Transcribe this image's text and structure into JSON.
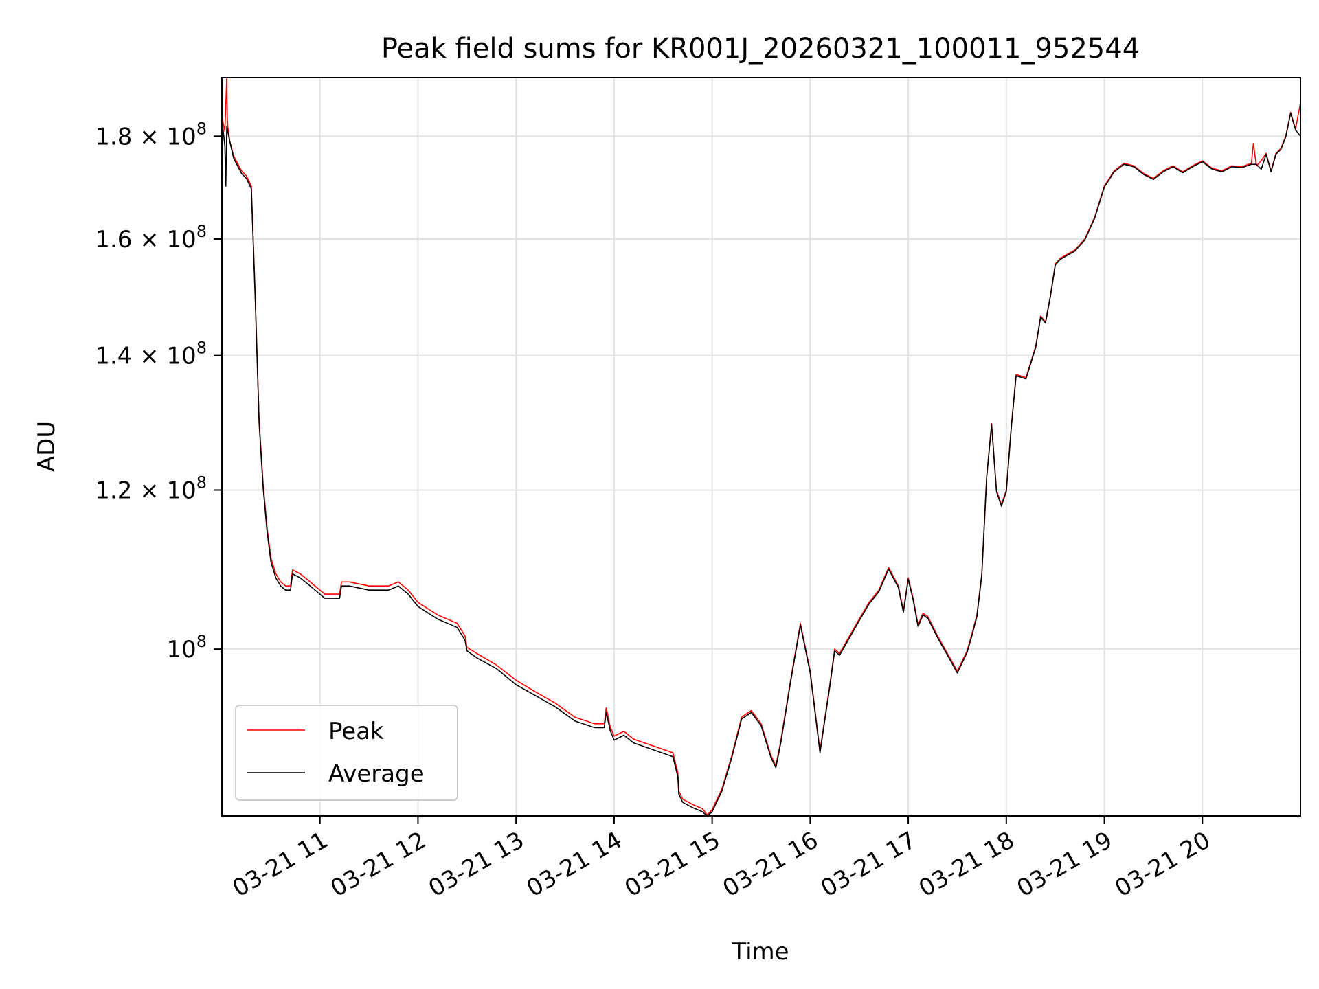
{
  "chart_data": {
    "type": "line",
    "title": "Peak field sums for KR001J_20260321_100011_952544",
    "xlabel": "Time",
    "ylabel": "ADU",
    "yscale": "log",
    "ylim": [
      82600000,
      192500000
    ],
    "xlim_hours": [
      10.0,
      21.0
    ],
    "grid": true,
    "legend_location": "lower-left",
    "x_ticks": [
      {
        "hour": 11,
        "label": "03-21 11"
      },
      {
        "hour": 12,
        "label": "03-21 12"
      },
      {
        "hour": 13,
        "label": "03-21 13"
      },
      {
        "hour": 14,
        "label": "03-21 14"
      },
      {
        "hour": 15,
        "label": "03-21 15"
      },
      {
        "hour": 16,
        "label": "03-21 16"
      },
      {
        "hour": 17,
        "label": "03-21 17"
      },
      {
        "hour": 18,
        "label": "03-21 18"
      },
      {
        "hour": 19,
        "label": "03-21 19"
      },
      {
        "hour": 20,
        "label": "03-21 20"
      }
    ],
    "y_ticks": [
      {
        "value": 100000000,
        "mantissa": "",
        "exponent": "8",
        "label": "10^8"
      },
      {
        "value": 120000000,
        "mantissa": "1.2",
        "exponent": "8",
        "label": "1.2 × 10^8"
      },
      {
        "value": 140000000,
        "mantissa": "1.4",
        "exponent": "8",
        "label": "1.4 × 10^8"
      },
      {
        "value": 160000000,
        "mantissa": "1.6",
        "exponent": "8",
        "label": "1.6 × 10^8"
      },
      {
        "value": 180000000,
        "mantissa": "1.8",
        "exponent": "8",
        "label": "1.8 × 10^8"
      }
    ],
    "series": [
      {
        "name": "Peak",
        "color": "#ff0000",
        "x_hours": [
          10.0,
          10.03,
          10.05,
          10.055,
          10.06,
          10.08,
          10.12,
          10.2,
          10.25,
          10.3,
          10.34,
          10.38,
          10.42,
          10.46,
          10.5,
          10.55,
          10.6,
          10.65,
          10.7,
          10.72,
          10.8,
          10.9,
          10.95,
          11.0,
          11.05,
          11.1,
          11.15,
          11.2,
          11.22,
          11.3,
          11.5,
          11.7,
          11.8,
          11.9,
          12.0,
          12.2,
          12.4,
          12.48,
          12.5,
          12.6,
          12.8,
          13.0,
          13.2,
          13.4,
          13.6,
          13.8,
          13.9,
          13.92,
          13.96,
          14.0,
          14.1,
          14.2,
          14.4,
          14.6,
          14.65,
          14.66,
          14.7,
          14.8,
          14.9,
          14.95,
          15.0,
          15.1,
          15.2,
          15.3,
          15.4,
          15.5,
          15.6,
          15.65,
          15.7,
          15.8,
          15.9,
          16.0,
          16.1,
          16.2,
          16.25,
          16.3,
          16.4,
          16.5,
          16.6,
          16.7,
          16.8,
          16.9,
          16.95,
          17.0,
          17.05,
          17.1,
          17.15,
          17.2,
          17.3,
          17.4,
          17.5,
          17.6,
          17.65,
          17.7,
          17.75,
          17.8,
          17.85,
          17.9,
          17.95,
          18.0,
          18.05,
          18.1,
          18.2,
          18.3,
          18.35,
          18.4,
          18.45,
          18.5,
          18.55,
          18.6,
          18.7,
          18.8,
          18.9,
          19.0,
          19.1,
          19.2,
          19.3,
          19.4,
          19.5,
          19.6,
          19.7,
          19.8,
          19.9,
          20.0,
          20.1,
          20.2,
          20.3,
          20.4,
          20.5,
          20.52,
          20.55,
          20.6,
          20.65,
          20.7,
          20.75,
          20.8,
          20.85,
          20.9,
          20.95,
          21.0
        ],
        "values": [
          184000000,
          181000000,
          192500000,
          184000000,
          182000000,
          179000000,
          176000000,
          173000000,
          172000000,
          170000000,
          150000000,
          130000000,
          121000000,
          115000000,
          111000000,
          109000000,
          108000000,
          107500000,
          107500000,
          109500000,
          109000000,
          108000000,
          107500000,
          107000000,
          106500000,
          106500000,
          106500000,
          106500000,
          108000000,
          108000000,
          107500000,
          107500000,
          108000000,
          107000000,
          105500000,
          104000000,
          103000000,
          101500000,
          100200000,
          99500000,
          98200000,
          96500000,
          95200000,
          94000000,
          92500000,
          91800000,
          91800000,
          93500000,
          91500000,
          90500000,
          91000000,
          90200000,
          89500000,
          88800000,
          86800000,
          85000000,
          84200000,
          83700000,
          83300000,
          82700000,
          83200000,
          85200000,
          88500000,
          92500000,
          93200000,
          91800000,
          88500000,
          87500000,
          90000000,
          96500000,
          103000000,
          97500000,
          89000000,
          96000000,
          100000000,
          99500000,
          101500000,
          103500000,
          105500000,
          107000000,
          109800000,
          107500000,
          104500000,
          108500000,
          106000000,
          102800000,
          104200000,
          103800000,
          101500000,
          99500000,
          97500000,
          99800000,
          101800000,
          104000000,
          109000000,
          122000000,
          129500000,
          120000000,
          118000000,
          120000000,
          129000000,
          137000000,
          136500000,
          141500000,
          146500000,
          145500000,
          150000000,
          155500000,
          156500000,
          157000000,
          158000000,
          160000000,
          164000000,
          170000000,
          173000000,
          174500000,
          174000000,
          172500000,
          171500000,
          173000000,
          174000000,
          172800000,
          174000000,
          175000000,
          173500000,
          173000000,
          174000000,
          173800000,
          174500000,
          178500000,
          174000000,
          175000000,
          176500000,
          173000000,
          176500000,
          177500000,
          180000000,
          185000000,
          181500000,
          187000000
        ]
      },
      {
        "name": "Average",
        "color": "#000000",
        "x_hours": [
          10.0,
          10.03,
          10.04,
          10.05,
          10.08,
          10.12,
          10.2,
          10.25,
          10.3,
          10.34,
          10.38,
          10.42,
          10.46,
          10.5,
          10.55,
          10.6,
          10.65,
          10.7,
          10.72,
          10.8,
          10.9,
          10.95,
          11.0,
          11.05,
          11.1,
          11.15,
          11.2,
          11.22,
          11.3,
          11.5,
          11.7,
          11.8,
          11.9,
          12.0,
          12.2,
          12.4,
          12.48,
          12.5,
          12.6,
          12.8,
          13.0,
          13.2,
          13.4,
          13.6,
          13.8,
          13.9,
          13.92,
          13.96,
          14.0,
          14.1,
          14.2,
          14.4,
          14.6,
          14.65,
          14.66,
          14.7,
          14.8,
          14.9,
          14.95,
          15.0,
          15.1,
          15.2,
          15.3,
          15.4,
          15.5,
          15.6,
          15.65,
          15.7,
          15.8,
          15.9,
          16.0,
          16.1,
          16.2,
          16.25,
          16.3,
          16.4,
          16.5,
          16.6,
          16.7,
          16.8,
          16.9,
          16.95,
          17.0,
          17.05,
          17.1,
          17.15,
          17.2,
          17.3,
          17.4,
          17.5,
          17.6,
          17.65,
          17.7,
          17.75,
          17.8,
          17.85,
          17.9,
          17.95,
          18.0,
          18.05,
          18.1,
          18.2,
          18.3,
          18.35,
          18.4,
          18.45,
          18.5,
          18.55,
          18.6,
          18.7,
          18.8,
          18.9,
          19.0,
          19.1,
          19.2,
          19.3,
          19.4,
          19.5,
          19.6,
          19.7,
          19.8,
          19.9,
          20.0,
          20.1,
          20.2,
          20.3,
          20.4,
          20.5,
          20.55,
          20.6,
          20.65,
          20.7,
          20.75,
          20.8,
          20.85,
          20.9,
          20.95,
          21.0
        ],
        "values": [
          183500000,
          178000000,
          170000000,
          182000000,
          179000000,
          175500000,
          172500000,
          171500000,
          169500000,
          149500000,
          129500000,
          120500000,
          114500000,
          110500000,
          108500000,
          107500000,
          107000000,
          107000000,
          109000000,
          108500000,
          107500000,
          107000000,
          106500000,
          106000000,
          106000000,
          106000000,
          106000000,
          107500000,
          107500000,
          107000000,
          107000000,
          107500000,
          106500000,
          105000000,
          103500000,
          102500000,
          101000000,
          99800000,
          99000000,
          97800000,
          96000000,
          94800000,
          93600000,
          92100000,
          91400000,
          91400000,
          93000000,
          91100000,
          90100000,
          90600000,
          89800000,
          89100000,
          88400000,
          86400000,
          84700000,
          83900000,
          83400000,
          83000000,
          82600000,
          83000000,
          85000000,
          88300000,
          92300000,
          93000000,
          91600000,
          88300000,
          87300000,
          89800000,
          96300000,
          102800000,
          97300000,
          88800000,
          95800000,
          99800000,
          99300000,
          101300000,
          103300000,
          105300000,
          106800000,
          109600000,
          107300000,
          104300000,
          108300000,
          105800000,
          102600000,
          104000000,
          103600000,
          101300000,
          99300000,
          97300000,
          99600000,
          101600000,
          103800000,
          108800000,
          121800000,
          129300000,
          119800000,
          117800000,
          119800000,
          128800000,
          136800000,
          136300000,
          141300000,
          146300000,
          145300000,
          149800000,
          155300000,
          156300000,
          156800000,
          157800000,
          159800000,
          163800000,
          169800000,
          172800000,
          174300000,
          173800000,
          172300000,
          171300000,
          172800000,
          173800000,
          172600000,
          173800000,
          174800000,
          173300000,
          172800000,
          173800000,
          173600000,
          174300000,
          174300000,
          173300000,
          176300000,
          172800000,
          176300000,
          177300000,
          179800000,
          184800000,
          181300000,
          180000000
        ]
      }
    ]
  }
}
